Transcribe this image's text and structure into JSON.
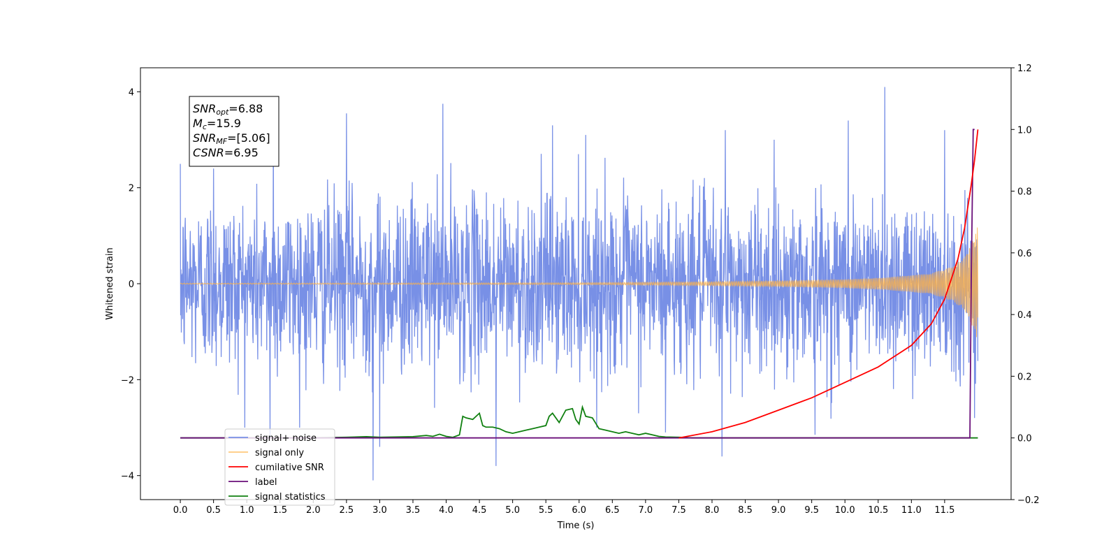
{
  "chart_data": {
    "type": "line",
    "xlabel": "Time (s)",
    "ylabel": "Whitened strain",
    "ylabel_right": "",
    "xlim": [
      -0.6,
      12.5
    ],
    "ylim": [
      -4.5,
      4.5
    ],
    "ylim_right": [
      -0.2,
      1.2
    ],
    "x_ticks": [
      0.0,
      0.5,
      1.0,
      1.5,
      2.0,
      2.5,
      3.0,
      3.5,
      4.0,
      4.5,
      5.0,
      5.5,
      6.0,
      6.5,
      7.0,
      7.5,
      8.0,
      8.5,
      9.0,
      9.5,
      10.0,
      10.5,
      11.0,
      11.5
    ],
    "x_tick_labels": [
      "0.0",
      "0.5",
      "1.0",
      "1.5",
      "2.0",
      "2.5",
      "3.0",
      "3.5",
      "4.0",
      "4.5",
      "5.0",
      "5.5",
      "6.0",
      "6.5",
      "7.0",
      "7.5",
      "8.0",
      "8.5",
      "9.0",
      "9.5",
      "10.0",
      "10.5",
      "11.0",
      "11.5"
    ],
    "y_ticks": [
      -4,
      -2,
      0,
      2,
      4
    ],
    "y_tick_labels": [
      "−4",
      "−2",
      "0",
      "2",
      "4"
    ],
    "y_right_ticks": [
      -0.2,
      0.0,
      0.2,
      0.4,
      0.6,
      0.8,
      1.0,
      1.2
    ],
    "y_right_tick_labels": [
      "−0.2",
      "0.0",
      "0.2",
      "0.4",
      "0.6",
      "0.8",
      "1.0",
      "1.2"
    ],
    "grid": false,
    "legend_position": "lower-left",
    "annotation": {
      "lines": [
        {
          "base": "SNR",
          "sub": "opt",
          "value": "=6.88"
        },
        {
          "base": "M",
          "sub": "c",
          "value": "=15.9"
        },
        {
          "base": "SNR",
          "sub": "MF",
          "value": "=[5.06]"
        },
        {
          "base": "CSNR",
          "sub": "",
          "value": "=6.95"
        }
      ]
    },
    "series": [
      {
        "name": "signal+ noise",
        "axis": "left",
        "color": "#7890e6",
        "x_range": [
          0.0,
          12.0
        ],
        "noise_sigma": 0.9,
        "spike_max": [
          [
            0.5,
            2.4
          ],
          [
            1.4,
            3.4
          ],
          [
            2.5,
            3.55
          ],
          [
            3.95,
            3.75
          ],
          [
            5.6,
            3.3
          ],
          [
            6.1,
            3.1
          ],
          [
            8.2,
            3.2
          ],
          [
            10.05,
            3.4
          ],
          [
            10.6,
            4.1
          ],
          [
            11.5,
            3.2
          ]
        ],
        "spike_min": [
          [
            1.35,
            -3.2
          ],
          [
            2.9,
            -4.1
          ],
          [
            3.0,
            -3.4
          ],
          [
            4.75,
            -3.8
          ],
          [
            7.3,
            -3.1
          ],
          [
            8.15,
            -3.6
          ],
          [
            9.55,
            -3.15
          ],
          [
            11.95,
            -2.8
          ]
        ]
      },
      {
        "name": "signal only",
        "axis": "left",
        "color": "#ffb347",
        "x": [
          0.0,
          6.0,
          8.0,
          9.0,
          10.0,
          10.5,
          11.0,
          11.3,
          11.6,
          11.8,
          11.92,
          12.0
        ],
        "envelope": [
          0.01,
          0.02,
          0.04,
          0.06,
          0.09,
          0.12,
          0.17,
          0.22,
          0.35,
          0.55,
          0.9,
          1.2
        ]
      },
      {
        "name": "cumilative SNR",
        "axis": "right",
        "color": "#ff0000",
        "x": [
          7.5,
          8.0,
          8.5,
          9.0,
          9.5,
          10.0,
          10.5,
          11.0,
          11.3,
          11.5,
          11.7,
          11.8,
          11.9,
          11.95,
          12.0
        ],
        "y": [
          0.0,
          0.02,
          0.05,
          0.09,
          0.13,
          0.18,
          0.23,
          0.3,
          0.37,
          0.45,
          0.58,
          0.68,
          0.82,
          0.9,
          1.0
        ]
      },
      {
        "name": "label",
        "axis": "right",
        "color": "#6a0f7a",
        "x": [
          0.0,
          11.88,
          11.9,
          11.93,
          11.95
        ],
        "y": [
          0.0,
          0.0,
          0.5,
          1.0,
          1.0
        ]
      },
      {
        "name": "signal statistics",
        "axis": "right",
        "color": "#108010",
        "x": [
          0.0,
          2.0,
          2.5,
          2.8,
          3.0,
          3.5,
          3.7,
          3.8,
          3.9,
          4.0,
          4.1,
          4.2,
          4.25,
          4.3,
          4.4,
          4.5,
          4.55,
          4.6,
          4.7,
          4.8,
          4.9,
          5.0,
          5.1,
          5.2,
          5.3,
          5.4,
          5.5,
          5.55,
          5.6,
          5.7,
          5.8,
          5.9,
          5.95,
          6.0,
          6.05,
          6.1,
          6.2,
          6.3,
          6.4,
          6.5,
          6.6,
          6.7,
          6.8,
          6.9,
          7.0,
          7.1,
          7.2,
          7.3,
          7.5,
          7.7,
          8.0,
          12.0
        ],
        "y": [
          0.0,
          0.0,
          0.002,
          0.004,
          0.002,
          0.004,
          0.008,
          0.005,
          0.012,
          0.005,
          0.002,
          0.01,
          0.07,
          0.065,
          0.06,
          0.08,
          0.04,
          0.035,
          0.035,
          0.03,
          0.02,
          0.015,
          0.02,
          0.025,
          0.03,
          0.035,
          0.04,
          0.07,
          0.08,
          0.05,
          0.09,
          0.095,
          0.06,
          0.045,
          0.1,
          0.07,
          0.065,
          0.03,
          0.025,
          0.02,
          0.015,
          0.02,
          0.015,
          0.01,
          0.015,
          0.01,
          0.005,
          0.003,
          0.002,
          0.0,
          0.0,
          0.0
        ]
      }
    ],
    "legend_entries": [
      {
        "name": "signal+ noise",
        "color": "#7890e6"
      },
      {
        "name": "signal only",
        "color": "#ffb347"
      },
      {
        "name": "cumilative SNR",
        "color": "#ff0000"
      },
      {
        "name": "label",
        "color": "#6a0f7a"
      },
      {
        "name": "signal statistics",
        "color": "#108010"
      }
    ]
  }
}
